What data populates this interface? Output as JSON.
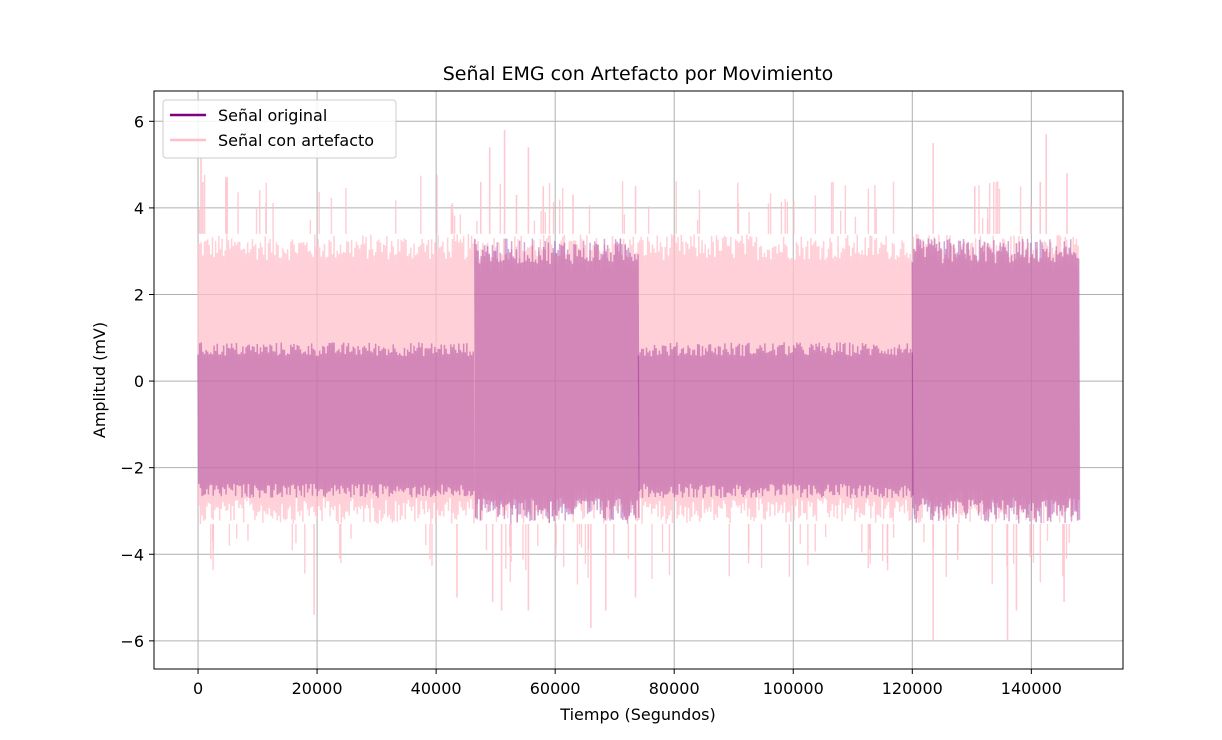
{
  "chart_data": {
    "type": "line",
    "title": "Señal EMG con Artefacto por Movimiento",
    "xlabel": "Tiempo (Segundos)",
    "ylabel": "Amplitud (mV)",
    "xlim": [
      -7400,
      155400
    ],
    "ylim": [
      -6.65,
      6.7
    ],
    "xticks": [
      0,
      20000,
      40000,
      60000,
      80000,
      100000,
      120000,
      140000
    ],
    "xtick_labels": [
      "0",
      "20000",
      "40000",
      "60000",
      "80000",
      "100000",
      "120000",
      "140000"
    ],
    "yticks": [
      -6,
      -4,
      -2,
      0,
      2,
      4,
      6
    ],
    "ytick_labels": [
      "−6",
      "−4",
      "−2",
      "0",
      "2",
      "4",
      "6"
    ],
    "grid": true,
    "legend_position": "upper left",
    "series": [
      {
        "name": "Señal original",
        "color": "#800080",
        "alpha": 0.35,
        "x_range": [
          0,
          148000
        ],
        "segments": [
          {
            "x": [
              0,
              46500
            ],
            "envelope": [
              -2.7,
              0.9
            ]
          },
          {
            "x": [
              46500,
              74000
            ],
            "envelope": [
              -3.3,
              3.3
            ]
          },
          {
            "x": [
              74000,
              120000
            ],
            "envelope": [
              -2.7,
              0.9
            ]
          },
          {
            "x": [
              120000,
              148000
            ],
            "envelope": [
              -3.3,
              3.3
            ]
          }
        ]
      },
      {
        "name": "Señal con artefacto",
        "color": "#FFC0CB",
        "alpha": 0.75,
        "x_range": [
          0,
          148000
        ],
        "envelope": [
          -3.3,
          3.4
        ],
        "spikes": [
          {
            "x": 500,
            "y": 5.2
          },
          {
            "x": 800,
            "y": 4.6
          },
          {
            "x": 19500,
            "y": -5.4
          },
          {
            "x": 43500,
            "y": -5.0
          },
          {
            "x": 47500,
            "y": 4.6
          },
          {
            "x": 49000,
            "y": 5.4
          },
          {
            "x": 49500,
            "y": -5.1
          },
          {
            "x": 51000,
            "y": -5.3
          },
          {
            "x": 51500,
            "y": 5.8
          },
          {
            "x": 53500,
            "y": 4.3
          },
          {
            "x": 55500,
            "y": 5.4
          },
          {
            "x": 55500,
            "y": -5.3
          },
          {
            "x": 58000,
            "y": 4.5
          },
          {
            "x": 63000,
            "y": 4.3
          },
          {
            "x": 66000,
            "y": -5.7
          },
          {
            "x": 68500,
            "y": -5.3
          },
          {
            "x": 73500,
            "y": 4.5
          },
          {
            "x": 73500,
            "y": -5.0
          },
          {
            "x": 123500,
            "y": 5.5
          },
          {
            "x": 123500,
            "y": -6.0
          },
          {
            "x": 130500,
            "y": 4.5
          },
          {
            "x": 136000,
            "y": -6.0
          },
          {
            "x": 137500,
            "y": -5.3
          },
          {
            "x": 141500,
            "y": 4.6
          },
          {
            "x": 142500,
            "y": 5.7
          },
          {
            "x": 145500,
            "y": -5.1
          },
          {
            "x": 146000,
            "y": 4.8
          }
        ]
      }
    ]
  }
}
